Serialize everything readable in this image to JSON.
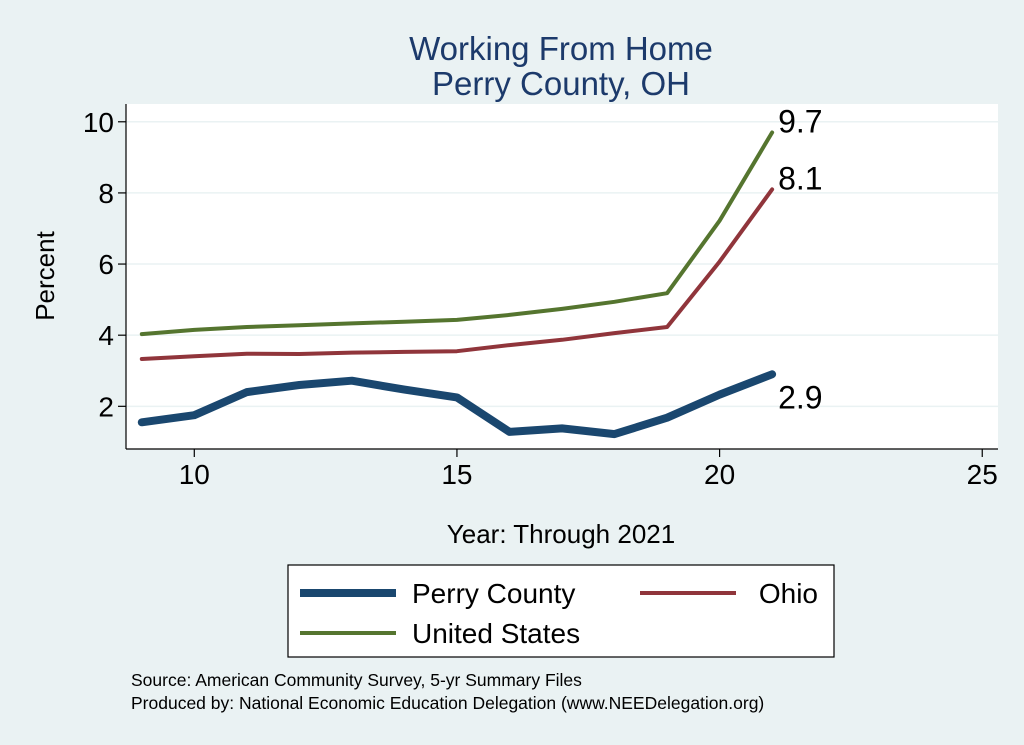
{
  "chart_data": {
    "type": "line",
    "title": "Working From Home",
    "subtitle": "Perry County, OH",
    "xlabel": "Year: Through 2021",
    "ylabel": "Percent",
    "xlim": [
      8.7,
      25.3
    ],
    "ylim": [
      0.8,
      10.5
    ],
    "xticks": [
      10,
      15,
      20,
      25
    ],
    "yticks": [
      2,
      4,
      6,
      8,
      10
    ],
    "grid": true,
    "legend_position": "bottom",
    "x": [
      9,
      10,
      11,
      12,
      13,
      14,
      15,
      16,
      17,
      18,
      19,
      20,
      21
    ],
    "series": [
      {
        "name": "Perry County",
        "color": "#1a476f",
        "width": "thick",
        "values": [
          1.55,
          1.75,
          2.4,
          2.6,
          2.72,
          2.47,
          2.25,
          1.28,
          1.38,
          1.22,
          1.68,
          2.33,
          2.9
        ],
        "end_label": "2.9"
      },
      {
        "name": "Ohio",
        "color": "#90353b",
        "width": "normal",
        "values": [
          3.33,
          3.41,
          3.48,
          3.47,
          3.51,
          3.53,
          3.55,
          3.72,
          3.87,
          4.06,
          4.23,
          6.07,
          8.1
        ],
        "end_label": "8.1"
      },
      {
        "name": "United States",
        "color": "#55752f",
        "width": "normal",
        "values": [
          4.03,
          4.15,
          4.23,
          4.28,
          4.33,
          4.38,
          4.43,
          4.57,
          4.74,
          4.94,
          5.18,
          7.22,
          9.7
        ],
        "end_label": "9.7"
      }
    ],
    "notes": [
      "Source: American Community Survey, 5-yr Summary Files",
      "Produced by: National Economic Education Delegation (www.NEEDelegation.org)"
    ]
  }
}
